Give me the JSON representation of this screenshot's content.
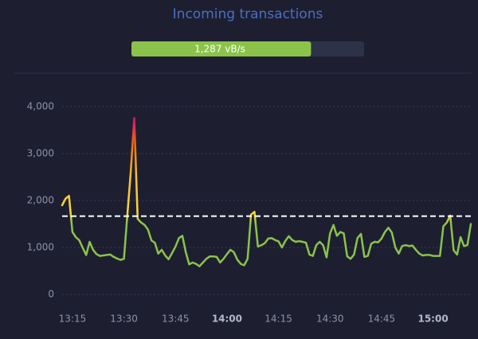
{
  "title": "Incoming transactions",
  "progress": {
    "value": 1287,
    "label": "1,287 vB/s"
  },
  "chart_data": {
    "type": "line",
    "x": [
      "13:12",
      "13:13",
      "13:14",
      "13:15",
      "13:16",
      "13:17",
      "13:18",
      "13:19",
      "13:20",
      "13:21",
      "13:22",
      "13:23",
      "13:24",
      "13:25",
      "13:26",
      "13:27",
      "13:28",
      "13:29",
      "13:30",
      "13:31",
      "13:32",
      "13:33",
      "13:34",
      "13:35",
      "13:36",
      "13:37",
      "13:38",
      "13:39",
      "13:40",
      "13:41",
      "13:42",
      "13:43",
      "13:44",
      "13:45",
      "13:46",
      "13:47",
      "13:48",
      "13:49",
      "13:50",
      "13:51",
      "13:52",
      "13:53",
      "13:54",
      "13:55",
      "13:56",
      "13:57",
      "13:58",
      "13:59",
      "14:00",
      "14:01",
      "14:02",
      "14:03",
      "14:04",
      "14:05",
      "14:06",
      "14:07",
      "14:08",
      "14:09",
      "14:10",
      "14:11",
      "14:12",
      "14:13",
      "14:14",
      "14:15",
      "14:16",
      "14:17",
      "14:18",
      "14:19",
      "14:20",
      "14:21",
      "14:22",
      "14:23",
      "14:24",
      "14:25",
      "14:26",
      "14:27",
      "14:28",
      "14:29",
      "14:30",
      "14:31",
      "14:32",
      "14:33",
      "14:34",
      "14:35",
      "14:36",
      "14:37",
      "14:38",
      "14:39",
      "14:40",
      "14:41",
      "14:42",
      "14:43",
      "14:44",
      "14:45",
      "14:46",
      "14:47",
      "14:48",
      "14:49",
      "14:50",
      "14:51",
      "14:52",
      "14:53",
      "14:54",
      "14:55",
      "14:56",
      "14:57",
      "14:58",
      "14:59",
      "15:00",
      "15:01",
      "15:02",
      "15:03",
      "15:04",
      "15:05",
      "15:06",
      "15:07",
      "15:08",
      "15:09",
      "15:10",
      "15:11"
    ],
    "series": [
      {
        "values": [
          1900,
          2040,
          2100,
          1330,
          1220,
          1150,
          990,
          840,
          1120,
          950,
          860,
          820,
          830,
          840,
          850,
          800,
          765,
          735,
          760,
          1700,
          2630,
          3760,
          1610,
          1530,
          1480,
          1380,
          1150,
          1100,
          870,
          950,
          830,
          750,
          880,
          1020,
          1200,
          1250,
          900,
          640,
          680,
          650,
          600,
          680,
          760,
          810,
          810,
          800,
          680,
          760,
          860,
          950,
          900,
          740,
          650,
          620,
          760,
          1700,
          1760,
          1020,
          1050,
          1090,
          1190,
          1200,
          1160,
          1130,
          1000,
          1140,
          1240,
          1160,
          1120,
          1135,
          1120,
          1100,
          850,
          820,
          1050,
          1120,
          1050,
          790,
          1300,
          1480,
          1250,
          1330,
          1300,
          810,
          760,
          850,
          1200,
          1290,
          800,
          820,
          1080,
          1120,
          1110,
          1190,
          1330,
          1420,
          1320,
          1000,
          870,
          1030,
          1050,
          1030,
          1040,
          950,
          870,
          830,
          840,
          840,
          820,
          820,
          820,
          1450,
          1530,
          1680,
          940,
          850,
          1220,
          1030,
          1050,
          1500
        ]
      }
    ],
    "xlim": [
      "13:12",
      "15:11"
    ],
    "xticks": [
      "13:15",
      "13:30",
      "13:45",
      "14:00",
      "14:15",
      "14:30",
      "14:45",
      "15:00"
    ],
    "ylim": [
      0,
      4000
    ],
    "yticks": [
      0,
      {
        "value": 1000,
        "label": "1,000"
      },
      {
        "value": 2000,
        "label": "2,000"
      },
      {
        "value": 3000,
        "label": "3,000"
      },
      {
        "value": 4000,
        "label": "4,000"
      }
    ],
    "threshold": 1667,
    "grid": true,
    "color_stops": [
      {
        "value": 1500,
        "color": "#8bc34a"
      },
      {
        "value": 1750,
        "color": "#fdd835"
      },
      {
        "value": 2500,
        "color": "#fbc02d"
      },
      {
        "value": 3100,
        "color": "#f57c00"
      },
      {
        "value": 3700,
        "color": "#d81b60"
      }
    ]
  }
}
